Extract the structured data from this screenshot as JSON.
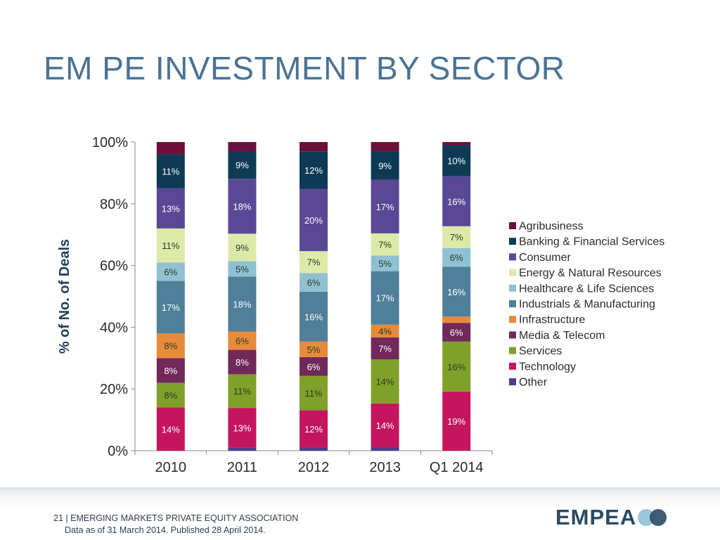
{
  "slide": {
    "title": "EM PE INVESTMENT BY SECTOR"
  },
  "footer": {
    "page_number": "21",
    "organization": "| EMERGING MARKETS PRIVATE EQUITY ASSOCIATION",
    "note": "Data as of 31 March 2014. Published 28 April 2014.",
    "logo_text": "EMPEA"
  },
  "chart_data": {
    "type": "bar",
    "stacked": true,
    "percent_stacked": true,
    "categories": [
      "2010",
      "2011",
      "2012",
      "2013",
      "Q1 2014"
    ],
    "ylabel": "% of No. of Deals",
    "ylim": [
      0,
      100
    ],
    "yticks": [
      "0%",
      "20%",
      "40%",
      "60%",
      "80%",
      "100%"
    ],
    "legend_position": "right",
    "series": [
      {
        "name": "Other",
        "color": "#4b3d8f",
        "values": [
          0,
          1,
          1,
          1,
          0
        ],
        "labels": [
          "",
          "",
          "",
          "",
          ""
        ]
      },
      {
        "name": "Technology",
        "color": "#c3165e",
        "values": [
          14,
          13,
          12,
          14,
          19
        ],
        "labels": [
          "14%",
          "13%",
          "12%",
          "14%",
          "19%"
        ]
      },
      {
        "name": "Services",
        "color": "#7fa12a",
        "values": [
          8,
          11,
          11,
          14,
          16
        ],
        "labels": [
          "8%",
          "11%",
          "11%",
          "14%",
          "16%"
        ]
      },
      {
        "name": "Media & Telecom",
        "color": "#71285a",
        "values": [
          8,
          8,
          6,
          7,
          6
        ],
        "labels": [
          "8%",
          "8%",
          "6%",
          "7%",
          "6%"
        ]
      },
      {
        "name": "Infrastructure",
        "color": "#e68a3c",
        "values": [
          8,
          6,
          5,
          4,
          2
        ],
        "labels": [
          "8%",
          "6%",
          "5%",
          "4%",
          ""
        ]
      },
      {
        "name": "Industrials & Manufacturing",
        "color": "#4f7f99",
        "values": [
          17,
          18,
          16,
          17,
          16
        ],
        "labels": [
          "17%",
          "18%",
          "16%",
          "17%",
          "16%"
        ]
      },
      {
        "name": "Healthcare & Life Sciences",
        "color": "#8fc1d3",
        "values": [
          6,
          5,
          6,
          5,
          6
        ],
        "labels": [
          "6%",
          "5%",
          "6%",
          "5%",
          "6%"
        ]
      },
      {
        "name": "Energy & Natural Resources",
        "color": "#dceaa8",
        "values": [
          11,
          9,
          7,
          7,
          7
        ],
        "labels": [
          "11%",
          "9%",
          "7%",
          "7%",
          "7%"
        ]
      },
      {
        "name": "Consumer",
        "color": "#5a4896",
        "values": [
          13,
          18,
          20,
          17,
          16
        ],
        "labels": [
          "13%",
          "18%",
          "20%",
          "17%",
          "16%"
        ]
      },
      {
        "name": "Banking & Financial Services",
        "color": "#0e3a55",
        "values": [
          11,
          9,
          12,
          9,
          10
        ],
        "labels": [
          "11%",
          "9%",
          "12%",
          "9%",
          "10%"
        ]
      },
      {
        "name": "Agribusiness",
        "color": "#6d0f3b",
        "values": [
          4,
          3,
          3,
          3,
          1
        ],
        "labels": [
          "",
          "",
          "",
          "",
          ""
        ]
      }
    ],
    "legend_order": [
      "Agribusiness",
      "Banking & Financial Services",
      "Consumer",
      "Energy & Natural Resources",
      "Healthcare & Life Sciences",
      "Industrials & Manufacturing",
      "Infrastructure",
      "Media & Telecom",
      "Services",
      "Technology",
      "Other"
    ]
  }
}
